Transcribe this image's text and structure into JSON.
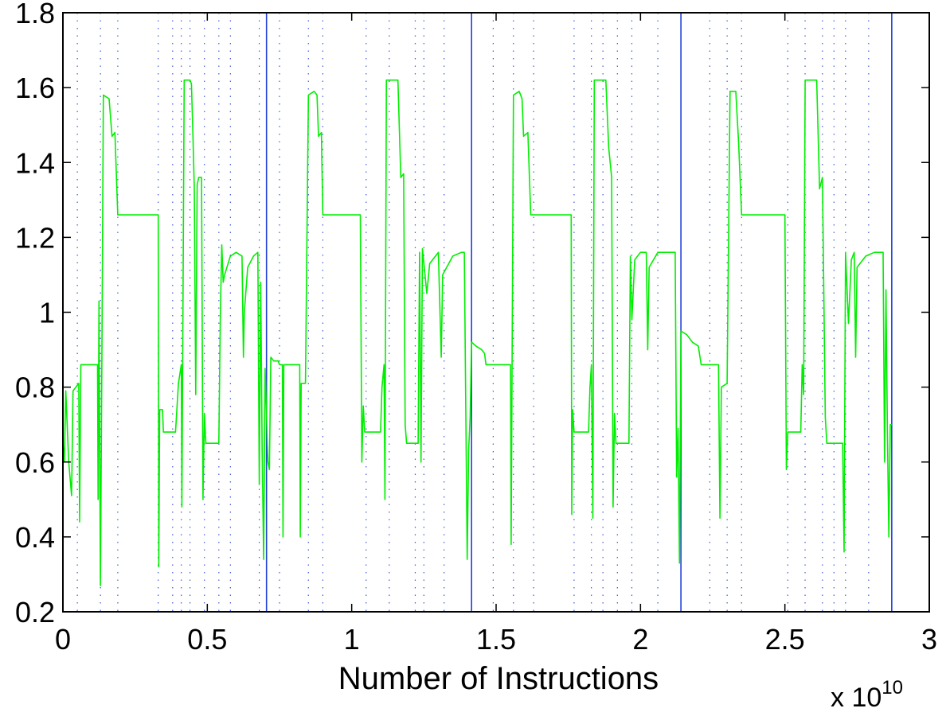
{
  "chart_data": {
    "type": "line",
    "title": "",
    "xlabel": "Number of Instructions",
    "ylabel": "",
    "x_exponent_label": {
      "base": "x 10",
      "power": "10"
    },
    "xlim": [
      0,
      3
    ],
    "ylim": [
      0.2,
      1.8
    ],
    "x_ticks": [
      0,
      0.5,
      1,
      1.5,
      2,
      2.5,
      3
    ],
    "x_tick_labels": [
      "0",
      "0.5",
      "1",
      "1.5",
      "2",
      "2.5",
      "3"
    ],
    "y_ticks": [
      0.2,
      0.4,
      0.6,
      0.8,
      1.0,
      1.2,
      1.4,
      1.6,
      1.8
    ],
    "y_tick_labels": [
      "0.2",
      "0.4",
      "0.6",
      "0.8",
      "1",
      "1.2",
      "1.4",
      "1.6",
      "1.8"
    ],
    "grid": false,
    "colors": {
      "series": "#00ee00",
      "phase_line": "#1f3fd8",
      "subphase_line": "#3b5bd8"
    },
    "phase_boundaries": [
      0.705,
      1.415,
      2.14,
      2.87
    ],
    "subphase_boundaries": [
      0.05,
      0.13,
      0.19,
      0.33,
      0.38,
      0.41,
      0.44,
      0.49,
      0.54,
      0.58,
      0.68,
      0.75,
      0.85,
      0.9,
      1.05,
      1.13,
      1.22,
      1.25,
      1.32,
      1.49,
      1.56,
      1.63,
      1.77,
      1.83,
      1.87,
      1.92,
      1.97,
      2.06,
      2.24,
      2.3,
      2.35,
      2.51,
      2.57,
      2.63,
      2.67,
      2.71,
      2.79
    ],
    "series": [
      {
        "values": [
          [
            0.0,
            0.65
          ],
          [
            0.005,
            0.6
          ],
          [
            0.01,
            0.79
          ],
          [
            0.02,
            0.6
          ],
          [
            0.03,
            0.51
          ],
          [
            0.035,
            0.79
          ],
          [
            0.045,
            0.8
          ],
          [
            0.055,
            0.81
          ],
          [
            0.058,
            0.44
          ],
          [
            0.062,
            0.86
          ],
          [
            0.12,
            0.86
          ],
          [
            0.122,
            0.5
          ],
          [
            0.125,
            1.03
          ],
          [
            0.13,
            0.27
          ],
          [
            0.135,
            0.9
          ],
          [
            0.14,
            1.58
          ],
          [
            0.16,
            1.57
          ],
          [
            0.17,
            1.47
          ],
          [
            0.18,
            1.48
          ],
          [
            0.19,
            1.26
          ],
          [
            0.3,
            1.26
          ],
          [
            0.33,
            1.26
          ],
          [
            0.332,
            0.32
          ],
          [
            0.335,
            0.74
          ],
          [
            0.345,
            0.74
          ],
          [
            0.348,
            0.68
          ],
          [
            0.39,
            0.68
          ],
          [
            0.4,
            0.81
          ],
          [
            0.41,
            0.86
          ],
          [
            0.412,
            0.48
          ],
          [
            0.42,
            1.62
          ],
          [
            0.44,
            1.62
          ],
          [
            0.445,
            1.61
          ],
          [
            0.45,
            1.48
          ],
          [
            0.455,
            1.33
          ],
          [
            0.46,
            0.78
          ],
          [
            0.465,
            1.34
          ],
          [
            0.47,
            1.36
          ],
          [
            0.48,
            1.36
          ],
          [
            0.485,
            0.5
          ],
          [
            0.49,
            0.73
          ],
          [
            0.495,
            0.65
          ],
          [
            0.54,
            0.65
          ],
          [
            0.545,
            0.99
          ],
          [
            0.55,
            1.18
          ],
          [
            0.555,
            1.08
          ],
          [
            0.56,
            1.1
          ],
          [
            0.58,
            1.15
          ],
          [
            0.6,
            1.16
          ],
          [
            0.62,
            1.15
          ],
          [
            0.625,
            0.88
          ],
          [
            0.628,
            1.0
          ],
          [
            0.64,
            1.12
          ],
          [
            0.66,
            1.15
          ],
          [
            0.675,
            1.16
          ],
          [
            0.68,
            0.54
          ],
          [
            0.685,
            1.08
          ],
          [
            0.69,
            0.63
          ],
          [
            0.695,
            0.34
          ],
          [
            0.7,
            0.85
          ],
          [
            0.71,
            0.6
          ],
          [
            0.715,
            0.58
          ],
          [
            0.72,
            0.88
          ],
          [
            0.73,
            0.87
          ],
          [
            0.745,
            0.87
          ],
          [
            0.75,
            0.86
          ],
          [
            0.76,
            0.86
          ],
          [
            0.762,
            0.4
          ],
          [
            0.765,
            0.86
          ],
          [
            0.8,
            0.86
          ],
          [
            0.82,
            0.86
          ],
          [
            0.822,
            0.4
          ],
          [
            0.825,
            0.81
          ],
          [
            0.84,
            0.81
          ],
          [
            0.85,
            1.58
          ],
          [
            0.87,
            1.59
          ],
          [
            0.88,
            1.58
          ],
          [
            0.885,
            1.47
          ],
          [
            0.895,
            1.48
          ],
          [
            0.9,
            1.26
          ],
          [
            1.0,
            1.26
          ],
          [
            1.03,
            1.26
          ],
          [
            1.035,
            0.6
          ],
          [
            1.04,
            0.75
          ],
          [
            1.045,
            0.68
          ],
          [
            1.1,
            0.68
          ],
          [
            1.105,
            0.8
          ],
          [
            1.112,
            0.86
          ],
          [
            1.115,
            0.5
          ],
          [
            1.12,
            1.62
          ],
          [
            1.16,
            1.62
          ],
          [
            1.17,
            1.36
          ],
          [
            1.18,
            1.37
          ],
          [
            1.185,
            0.7
          ],
          [
            1.19,
            0.65
          ],
          [
            1.23,
            0.65
          ],
          [
            1.235,
            1.16
          ],
          [
            1.24,
            0.6
          ],
          [
            1.245,
            1.17
          ],
          [
            1.26,
            1.05
          ],
          [
            1.27,
            1.13
          ],
          [
            1.3,
            1.16
          ],
          [
            1.31,
            0.88
          ],
          [
            1.315,
            1.1
          ],
          [
            1.35,
            1.15
          ],
          [
            1.38,
            1.16
          ],
          [
            1.39,
            1.16
          ],
          [
            1.4,
            0.34
          ],
          [
            1.405,
            0.63
          ],
          [
            1.41,
            0.72
          ],
          [
            1.415,
            0.92
          ],
          [
            1.43,
            0.91
          ],
          [
            1.45,
            0.9
          ],
          [
            1.46,
            0.89
          ],
          [
            1.465,
            0.86
          ],
          [
            1.52,
            0.86
          ],
          [
            1.55,
            0.86
          ],
          [
            1.552,
            0.38
          ],
          [
            1.555,
            0.79
          ],
          [
            1.56,
            1.58
          ],
          [
            1.58,
            1.59
          ],
          [
            1.59,
            1.57
          ],
          [
            1.595,
            1.47
          ],
          [
            1.61,
            1.48
          ],
          [
            1.62,
            1.26
          ],
          [
            1.72,
            1.26
          ],
          [
            1.76,
            1.26
          ],
          [
            1.762,
            0.46
          ],
          [
            1.765,
            0.74
          ],
          [
            1.77,
            0.68
          ],
          [
            1.82,
            0.68
          ],
          [
            1.825,
            0.8
          ],
          [
            1.83,
            0.86
          ],
          [
            1.835,
            0.45
          ],
          [
            1.84,
            1.62
          ],
          [
            1.88,
            1.62
          ],
          [
            1.89,
            1.44
          ],
          [
            1.9,
            1.36
          ],
          [
            1.905,
            0.48
          ],
          [
            1.91,
            0.73
          ],
          [
            1.915,
            0.65
          ],
          [
            1.96,
            0.65
          ],
          [
            1.965,
            1.15
          ],
          [
            1.97,
            0.98
          ],
          [
            1.98,
            1.14
          ],
          [
            2.0,
            1.16
          ],
          [
            2.02,
            1.16
          ],
          [
            2.025,
            0.9
          ],
          [
            2.03,
            1.12
          ],
          [
            2.06,
            1.16
          ],
          [
            2.1,
            1.16
          ],
          [
            2.12,
            1.16
          ],
          [
            2.125,
            0.56
          ],
          [
            2.13,
            0.69
          ],
          [
            2.135,
            0.33
          ],
          [
            2.14,
            0.95
          ],
          [
            2.16,
            0.94
          ],
          [
            2.18,
            0.92
          ],
          [
            2.2,
            0.91
          ],
          [
            2.21,
            0.86
          ],
          [
            2.26,
            0.86
          ],
          [
            2.27,
            0.86
          ],
          [
            2.275,
            0.45
          ],
          [
            2.28,
            0.8
          ],
          [
            2.3,
            0.81
          ],
          [
            2.31,
            1.59
          ],
          [
            2.33,
            1.59
          ],
          [
            2.34,
            1.45
          ],
          [
            2.35,
            1.26
          ],
          [
            2.45,
            1.26
          ],
          [
            2.5,
            1.26
          ],
          [
            2.505,
            0.58
          ],
          [
            2.51,
            0.68
          ],
          [
            2.555,
            0.68
          ],
          [
            2.56,
            0.86
          ],
          [
            2.565,
            0.78
          ],
          [
            2.57,
            1.62
          ],
          [
            2.61,
            1.62
          ],
          [
            2.62,
            1.33
          ],
          [
            2.63,
            1.36
          ],
          [
            2.64,
            0.72
          ],
          [
            2.645,
            0.65
          ],
          [
            2.7,
            0.65
          ],
          [
            2.705,
            0.36
          ],
          [
            2.71,
            1.16
          ],
          [
            2.72,
            0.97
          ],
          [
            2.73,
            1.14
          ],
          [
            2.74,
            1.16
          ],
          [
            2.745,
            0.88
          ],
          [
            2.75,
            1.12
          ],
          [
            2.78,
            1.15
          ],
          [
            2.81,
            1.16
          ],
          [
            2.84,
            1.16
          ],
          [
            2.845,
            0.6
          ],
          [
            2.85,
            1.06
          ],
          [
            2.855,
            0.68
          ],
          [
            2.86,
            0.4
          ],
          [
            2.865,
            0.7
          ],
          [
            2.87,
            0.7
          ]
        ]
      }
    ]
  }
}
